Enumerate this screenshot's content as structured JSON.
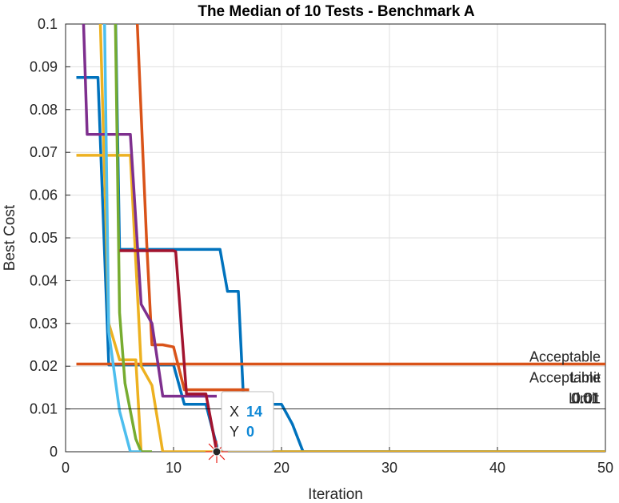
{
  "chart_data": {
    "type": "line",
    "title": "The Median of 10 Tests - Benchmark A",
    "xlabel": "Iteration",
    "ylabel": "Best Cost",
    "xlim": [
      0,
      50
    ],
    "ylim": [
      0,
      0.1
    ],
    "xticks": [
      "0",
      "10",
      "20",
      "30",
      "40",
      "50"
    ],
    "yticks": [
      "0",
      "0.01",
      "0.02",
      "0.03",
      "0.04",
      "0.05",
      "0.06",
      "0.07",
      "0.08",
      "0.09",
      "0.1"
    ],
    "grid": true,
    "series": [
      {
        "color": "#0072bd",
        "x": [
          1,
          3,
          4,
          6,
          10,
          11,
          13,
          14,
          14,
          15,
          50
        ],
        "y": [
          0.0875,
          0.0875,
          0.0203,
          0.0203,
          0.0203,
          0.0111,
          0.0111,
          0.0014,
          0,
          0,
          0
        ]
      },
      {
        "color": "#0072bd",
        "x": [
          4.5,
          5,
          13,
          14.3,
          15,
          16,
          16.5,
          20,
          21,
          22,
          50
        ],
        "y": [
          0.12,
          0.0473,
          0.0473,
          0.0473,
          0.0375,
          0.0375,
          0.0111,
          0.0111,
          0.0065,
          0,
          0
        ]
      },
      {
        "color": "#d95319",
        "x": [
          1,
          2,
          5,
          7,
          8,
          14,
          17,
          50
        ],
        "y": [
          0.0205,
          0.0205,
          0.0205,
          0.0205,
          0.0205,
          0.0205,
          0.0205,
          0.0205
        ]
      },
      {
        "color": "#d95319",
        "x": [
          6.3,
          7.5,
          8,
          9,
          10,
          11,
          12,
          16,
          17
        ],
        "y": [
          0.12,
          0.0493,
          0.025,
          0.025,
          0.0245,
          0.0145,
          0.0145,
          0.0145,
          0.0145
        ]
      },
      {
        "color": "#edb120",
        "x": [
          1,
          6,
          7,
          8,
          9,
          50
        ],
        "y": [
          0.0693,
          0.0693,
          0.02,
          0.0155,
          0,
          0
        ]
      },
      {
        "color": "#edb120",
        "x": [
          3,
          4,
          5,
          6,
          6.5,
          7
        ],
        "y": [
          0.12,
          0.03,
          0.0215,
          0.0215,
          0.0215,
          0
        ]
      },
      {
        "color": "#7e2f8e",
        "x": [
          1.6,
          2,
          4,
          6,
          7,
          8,
          9,
          10,
          13,
          14
        ],
        "y": [
          0.105,
          0.0742,
          0.0742,
          0.0742,
          0.0345,
          0.03,
          0.013,
          0.013,
          0.013,
          0.013
        ]
      },
      {
        "color": "#77ac30",
        "x": [
          4.5,
          5,
          5.5,
          6.5,
          7,
          8
        ],
        "y": [
          0.12,
          0.0325,
          0.016,
          0.003,
          0,
          0
        ]
      },
      {
        "color": "#4dbeee",
        "x": [
          3.5,
          4,
          5,
          6,
          7
        ],
        "y": [
          0.12,
          0.028,
          0.0095,
          0,
          0
        ]
      },
      {
        "color": "#a2142f",
        "x": [
          5,
          6,
          10,
          10.2,
          11.2,
          12,
          13,
          14
        ],
        "y": [
          0.047,
          0.047,
          0.047,
          0.0468,
          0.0135,
          0.0135,
          0.0135,
          0
        ]
      }
    ],
    "reference_line": {
      "y": 0.01,
      "label_lines": [
        "Acceptable",
        "Acceptable",
        "Limit",
        "Limit",
        "0.01",
        "0.01"
      ]
    },
    "datatip": {
      "x": 14,
      "y": 0,
      "x_key": "X",
      "x_value": "14",
      "y_key": "Y",
      "y_value": "0"
    }
  }
}
